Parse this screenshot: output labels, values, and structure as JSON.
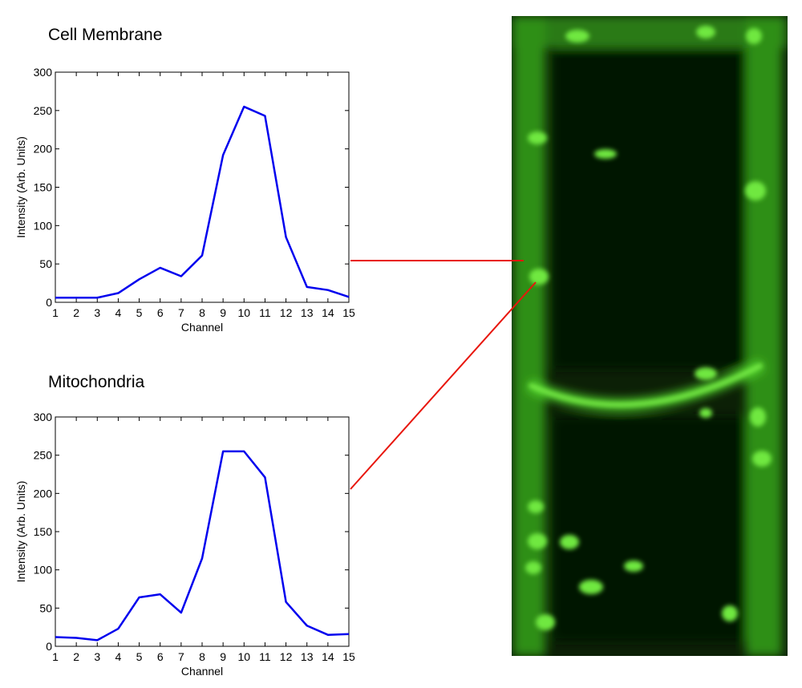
{
  "chart_data": [
    {
      "type": "line",
      "title": "Cell Membrane",
      "xlabel": "Channel",
      "ylabel": "Intensity (Arb. Units)",
      "x": [
        1,
        2,
        3,
        4,
        5,
        6,
        7,
        8,
        9,
        10,
        11,
        12,
        13,
        14,
        15
      ],
      "values": [
        6,
        6,
        6,
        12,
        30,
        45,
        34,
        61,
        192,
        255,
        243,
        85,
        20,
        16,
        7
      ],
      "color": "#0000ee",
      "xlim": [
        1,
        15
      ],
      "ylim": [
        0,
        300
      ],
      "xticks": [
        1,
        2,
        3,
        4,
        5,
        6,
        7,
        8,
        9,
        10,
        11,
        12,
        13,
        14,
        15
      ],
      "yticks": [
        0,
        50,
        100,
        150,
        200,
        250,
        300
      ]
    },
    {
      "type": "line",
      "title": "Mitochondria",
      "xlabel": "Channel",
      "ylabel": "Intensity (Arb. Units)",
      "x": [
        1,
        2,
        3,
        4,
        5,
        6,
        7,
        8,
        9,
        10,
        11,
        12,
        13,
        14,
        15
      ],
      "values": [
        12,
        11,
        8,
        23,
        64,
        68,
        44,
        115,
        255,
        255,
        221,
        58,
        27,
        15,
        16
      ],
      "color": "#0000ee",
      "xlim": [
        1,
        15
      ],
      "ylim": [
        0,
        300
      ],
      "xticks": [
        1,
        2,
        3,
        4,
        5,
        6,
        7,
        8,
        9,
        10,
        11,
        12,
        13,
        14,
        15
      ],
      "yticks": [
        0,
        50,
        100,
        150,
        200,
        250,
        300
      ]
    }
  ]
}
